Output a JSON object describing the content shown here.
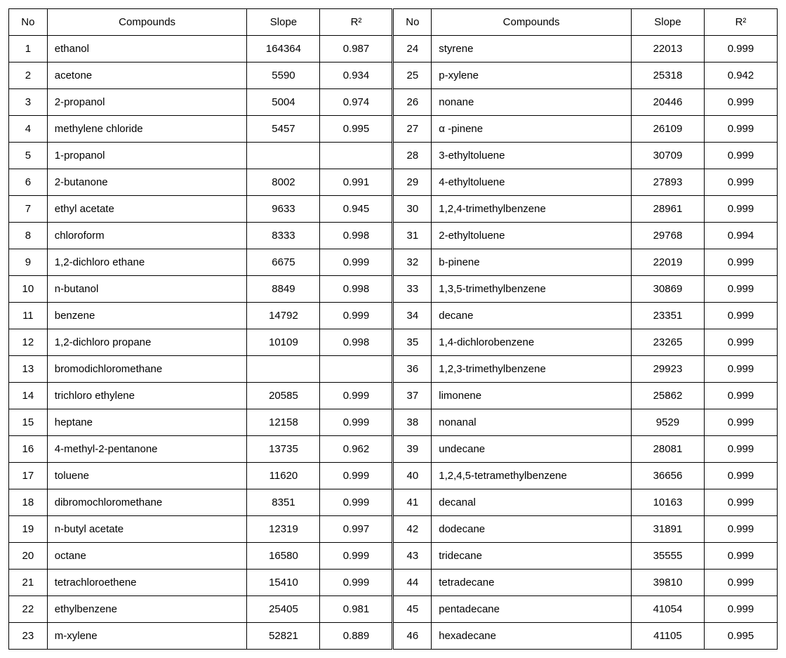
{
  "font_family": "Malgun Gothic, Segoe UI, Arial, sans-serif",
  "font_size_pt": 11,
  "border_color": "#000000",
  "background_color": "#ffffff",
  "text_color": "#000000",
  "columns": [
    "No",
    "Compounds",
    "Slope",
    "R²"
  ],
  "column_align": [
    "center",
    "left",
    "center",
    "center"
  ],
  "rows_left": [
    {
      "no": "1",
      "compound": "ethanol",
      "slope": "164364",
      "r2": "0.987"
    },
    {
      "no": "2",
      "compound": "acetone",
      "slope": "5590",
      "r2": "0.934"
    },
    {
      "no": "3",
      "compound": "2-propanol",
      "slope": "5004",
      "r2": "0.974"
    },
    {
      "no": "4",
      "compound": "methylene chloride",
      "slope": "5457",
      "r2": "0.995"
    },
    {
      "no": "5",
      "compound": "1-propanol",
      "slope": "",
      "r2": ""
    },
    {
      "no": "6",
      "compound": "2-butanone",
      "slope": "8002",
      "r2": "0.991"
    },
    {
      "no": "7",
      "compound": "ethyl acetate",
      "slope": "9633",
      "r2": "0.945"
    },
    {
      "no": "8",
      "compound": "chloroform",
      "slope": "8333",
      "r2": "0.998"
    },
    {
      "no": "9",
      "compound": "1,2-dichloro ethane",
      "slope": "6675",
      "r2": "0.999"
    },
    {
      "no": "10",
      "compound": "n-butanol",
      "slope": "8849",
      "r2": "0.998"
    },
    {
      "no": "11",
      "compound": "benzene",
      "slope": "14792",
      "r2": "0.999"
    },
    {
      "no": "12",
      "compound": "1,2-dichloro propane",
      "slope": "10109",
      "r2": "0.998"
    },
    {
      "no": "13",
      "compound": "bromodichloromethane",
      "slope": "",
      "r2": ""
    },
    {
      "no": "14",
      "compound": "trichloro ethylene",
      "slope": "20585",
      "r2": "0.999"
    },
    {
      "no": "15",
      "compound": "heptane",
      "slope": "12158",
      "r2": "0.999"
    },
    {
      "no": "16",
      "compound": "4-methyl-2-pentanone",
      "slope": "13735",
      "r2": "0.962"
    },
    {
      "no": "17",
      "compound": "toluene",
      "slope": "11620",
      "r2": "0.999"
    },
    {
      "no": "18",
      "compound": "dibromochloromethane",
      "slope": "8351",
      "r2": "0.999"
    },
    {
      "no": "19",
      "compound": "n-butyl acetate",
      "slope": "12319",
      "r2": "0.997"
    },
    {
      "no": "20",
      "compound": "octane",
      "slope": "16580",
      "r2": "0.999"
    },
    {
      "no": "21",
      "compound": "tetrachloroethene",
      "slope": "15410",
      "r2": "0.999"
    },
    {
      "no": "22",
      "compound": "ethylbenzene",
      "slope": "25405",
      "r2": "0.981"
    },
    {
      "no": "23",
      "compound": "m-xylene",
      "slope": "52821",
      "r2": "0.889"
    }
  ],
  "rows_right": [
    {
      "no": "24",
      "compound": "styrene",
      "slope": "22013",
      "r2": "0.999"
    },
    {
      "no": "25",
      "compound": "p-xylene",
      "slope": "25318",
      "r2": "0.942"
    },
    {
      "no": "26",
      "compound": "nonane",
      "slope": "20446",
      "r2": "0.999"
    },
    {
      "no": "27",
      "compound": " α -pinene",
      "slope": "26109",
      "r2": "0.999"
    },
    {
      "no": "28",
      "compound": "3-ethyltoluene",
      "slope": "30709",
      "r2": "0.999"
    },
    {
      "no": "29",
      "compound": "4-ethyltoluene",
      "slope": "27893",
      "r2": "0.999"
    },
    {
      "no": "30",
      "compound": "1,2,4-trimethylbenzene",
      "slope": "28961",
      "r2": "0.999"
    },
    {
      "no": "31",
      "compound": "2-ethyltoluene",
      "slope": "29768",
      "r2": "0.994"
    },
    {
      "no": "32",
      "compound": "b-pinene",
      "slope": "22019",
      "r2": "0.999"
    },
    {
      "no": "33",
      "compound": "1,3,5-trimethylbenzene",
      "slope": "30869",
      "r2": "0.999"
    },
    {
      "no": "34",
      "compound": "decane",
      "slope": "23351",
      "r2": "0.999"
    },
    {
      "no": "35",
      "compound": "1,4-dichlorobenzene",
      "slope": "23265",
      "r2": "0.999"
    },
    {
      "no": "36",
      "compound": "1,2,3-trimethylbenzene",
      "slope": "29923",
      "r2": "0.999"
    },
    {
      "no": "37",
      "compound": "limonene",
      "slope": "25862",
      "r2": "0.999"
    },
    {
      "no": "38",
      "compound": "nonanal",
      "slope": "9529",
      "r2": "0.999"
    },
    {
      "no": "39",
      "compound": "undecane",
      "slope": "28081",
      "r2": "0.999"
    },
    {
      "no": "40",
      "compound": "1,2,4,5-tetramethylbenzene",
      "slope": "36656",
      "r2": "0.999"
    },
    {
      "no": "41",
      "compound": "decanal",
      "slope": "10163",
      "r2": "0.999"
    },
    {
      "no": "42",
      "compound": "dodecane",
      "slope": "31891",
      "r2": "0.999"
    },
    {
      "no": "43",
      "compound": "tridecane",
      "slope": "35555",
      "r2": "0.999"
    },
    {
      "no": "44",
      "compound": "tetradecane",
      "slope": "39810",
      "r2": "0.999"
    },
    {
      "no": "45",
      "compound": "pentadecane",
      "slope": "41054",
      "r2": "0.999"
    },
    {
      "no": "46",
      "compound": "hexadecane",
      "slope": "41105",
      "r2": "0.995"
    }
  ]
}
